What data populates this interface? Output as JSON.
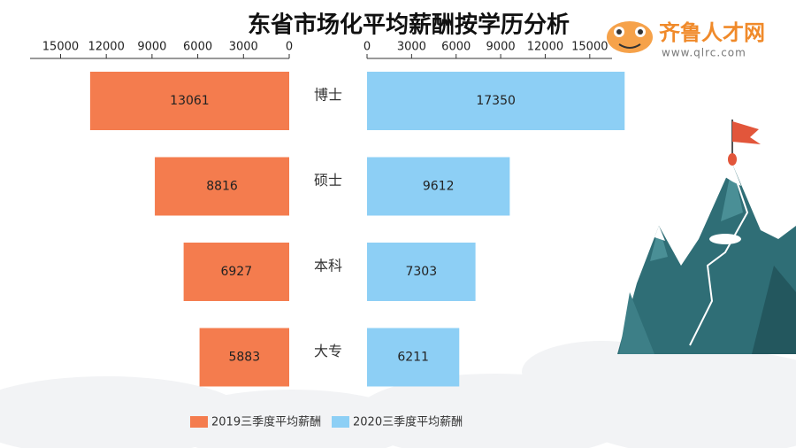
{
  "chart_data": {
    "type": "butterfly",
    "title": "东省市场化平均薪酬按学历分析",
    "categories": [
      "博士",
      "硕士",
      "本科",
      "大专"
    ],
    "series": [
      {
        "name": "2019三季度平均薪酬",
        "color": "#f47c4e",
        "values": [
          13061,
          8816,
          6927,
          5883
        ],
        "axis": "x"
      },
      {
        "name": "2020三季度平均薪酬",
        "color": "#8dcff5",
        "values": [
          17350,
          9612,
          7303,
          6211
        ],
        "axis": "x2"
      }
    ],
    "xlim": [
      0,
      17000
    ],
    "xticks": [
      0,
      3000,
      6000,
      9000,
      12000,
      15000
    ],
    "x2lim": [
      0,
      16500
    ],
    "x2ticks": [
      0,
      3000,
      6000,
      9000,
      12000,
      15000
    ],
    "legend": "bottom"
  },
  "logo": {
    "name": "齐鲁人才网",
    "url": "www.qlrc.com"
  }
}
